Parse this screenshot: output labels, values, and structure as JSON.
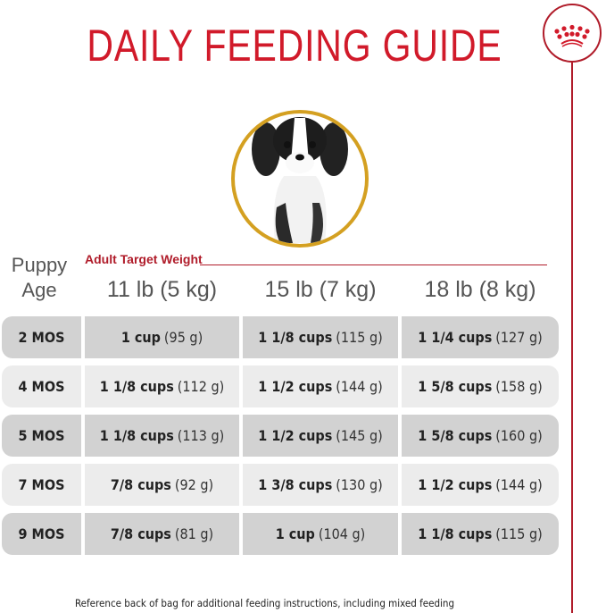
{
  "title": "DAILY FEEDING GUIDE",
  "logo": {
    "icon": "royal-canin-crown-icon",
    "color": "#b01c2a"
  },
  "accent_color": "#d11a2a",
  "table": {
    "age_header": [
      "Puppy",
      "Age"
    ],
    "group_label": "Adult Target Weight",
    "columns": [
      "11 lb (5 kg)",
      "15 lb (7 kg)",
      "18 lb (8 kg)"
    ],
    "rows": [
      {
        "age": "2 MOS",
        "cells": [
          {
            "cups": "1 cup",
            "grams": "(95 g)"
          },
          {
            "cups": "1 1/8 cups",
            "grams": "(115 g)"
          },
          {
            "cups": "1 1/4 cups",
            "grams": "(127 g)"
          }
        ]
      },
      {
        "age": "4 MOS",
        "cells": [
          {
            "cups": "1 1/8 cups",
            "grams": "(112 g)"
          },
          {
            "cups": "1 1/2 cups",
            "grams": "(144 g)"
          },
          {
            "cups": "1 5/8 cups",
            "grams": "(158 g)"
          }
        ]
      },
      {
        "age": "5 MOS",
        "cells": [
          {
            "cups": "1 1/8 cups",
            "grams": "(113 g)"
          },
          {
            "cups": "1 1/2 cups",
            "grams": "(145 g)"
          },
          {
            "cups": "1 5/8 cups",
            "grams": "(160 g)"
          }
        ]
      },
      {
        "age": "7 MOS",
        "cells": [
          {
            "cups": "7/8 cups",
            "grams": "(92 g)"
          },
          {
            "cups": "1 3/8 cups",
            "grams": "(130 g)"
          },
          {
            "cups": "1 1/2 cups",
            "grams": "(144 g)"
          }
        ]
      },
      {
        "age": "9 MOS",
        "cells": [
          {
            "cups": "7/8 cups",
            "grams": "(81 g)"
          },
          {
            "cups": "1 cup",
            "grams": "(104 g)"
          },
          {
            "cups": "1 1/8 cups",
            "grams": "(115 g)"
          }
        ]
      }
    ]
  },
  "footnote": "Reference back of bag for additional feeding instructions, including mixed feeding"
}
